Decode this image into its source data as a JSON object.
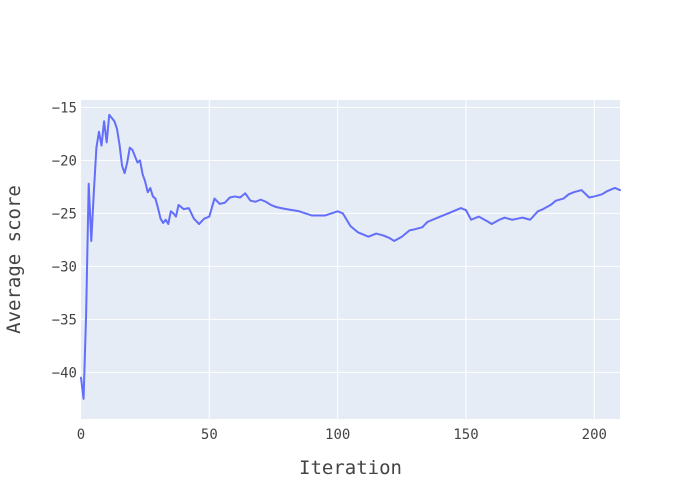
{
  "chart_data": {
    "type": "line",
    "title": "",
    "xlabel": "Iteration",
    "ylabel": "Average score",
    "xlim": [
      0,
      210
    ],
    "ylim": [
      -44.4,
      -14.3
    ],
    "x_ticks": [
      0,
      50,
      100,
      150,
      200
    ],
    "y_ticks": [
      -40,
      -35,
      -30,
      -25,
      -20,
      -15
    ],
    "grid": true,
    "colors": {
      "plot_bg": "#E5ECF6",
      "grid": "#ffffff",
      "line": "#636EFA",
      "text": "#444444"
    },
    "series": [
      {
        "name": "",
        "x": [
          0,
          1,
          2,
          3,
          4,
          5,
          6,
          7,
          8,
          9,
          10,
          11,
          12,
          13,
          14,
          15,
          16,
          17,
          18,
          19,
          20,
          21,
          22,
          23,
          24,
          25,
          26,
          27,
          28,
          29,
          30,
          31,
          32,
          33,
          34,
          35,
          36,
          37,
          38,
          40,
          42,
          44,
          46,
          48,
          50,
          52,
          54,
          56,
          58,
          60,
          62,
          64,
          66,
          68,
          70,
          72,
          74,
          76,
          78,
          80,
          85,
          90,
          95,
          100,
          102,
          105,
          108,
          110,
          112,
          115,
          118,
          120,
          122,
          125,
          128,
          130,
          133,
          135,
          138,
          140,
          143,
          145,
          148,
          150,
          152,
          155,
          158,
          160,
          163,
          165,
          168,
          170,
          172,
          175,
          178,
          180,
          183,
          185,
          188,
          190,
          192,
          195,
          198,
          200,
          203,
          205,
          208,
          210
        ],
        "values": [
          -40.5,
          -42.5,
          -34.5,
          -22.2,
          -27.6,
          -23.0,
          -18.8,
          -17.3,
          -18.6,
          -16.3,
          -18.3,
          -15.7,
          -16.0,
          -16.3,
          -17.0,
          -18.5,
          -20.5,
          -21.2,
          -20.2,
          -18.8,
          -19.0,
          -19.6,
          -20.2,
          -20.0,
          -21.3,
          -22.0,
          -23.0,
          -22.6,
          -23.4,
          -23.6,
          -24.5,
          -25.5,
          -25.9,
          -25.6,
          -26.0,
          -24.8,
          -25.0,
          -25.3,
          -24.2,
          -24.6,
          -24.5,
          -25.5,
          -26.0,
          -25.5,
          -25.3,
          -23.6,
          -24.1,
          -24.0,
          -23.5,
          -23.4,
          -23.5,
          -23.1,
          -23.8,
          -23.9,
          -23.7,
          -23.9,
          -24.2,
          -24.4,
          -24.5,
          -24.6,
          -24.8,
          -25.2,
          -25.2,
          -24.8,
          -25.0,
          -26.2,
          -26.8,
          -27.0,
          -27.2,
          -26.9,
          -27.1,
          -27.3,
          -27.6,
          -27.2,
          -26.6,
          -26.5,
          -26.3,
          -25.8,
          -25.5,
          -25.3,
          -25.0,
          -24.8,
          -24.5,
          -24.7,
          -25.6,
          -25.3,
          -25.7,
          -26.0,
          -25.6,
          -25.4,
          -25.6,
          -25.5,
          -25.4,
          -25.6,
          -24.8,
          -24.6,
          -24.2,
          -23.8,
          -23.6,
          -23.2,
          -23.0,
          -22.8,
          -23.5,
          -23.4,
          -23.2,
          -22.9,
          -22.6,
          -22.8
        ]
      }
    ]
  }
}
